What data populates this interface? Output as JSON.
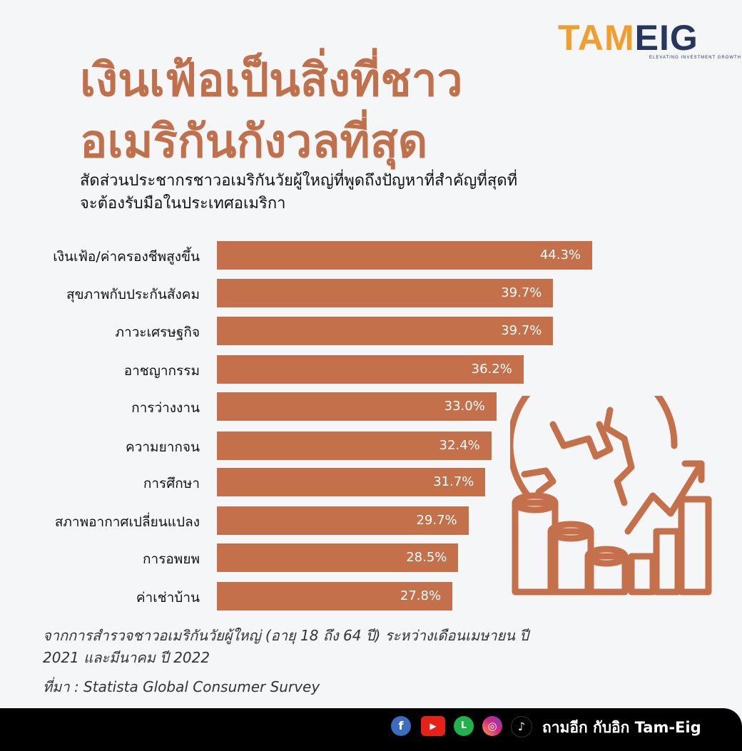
{
  "logo": {
    "part1": "TAM",
    "part2": "EIG",
    "tagline": "ELEVATING INVESTMENT GROWTH"
  },
  "title": "เงินเฟ้อเป็นสิ่งที่ชาวอเมริกันกังวลที่สุด",
  "subtitle": "สัดส่วนประชากรชาวอเมริกันวัยผู้ใหญ่ที่พูดถึงปัญหาที่สำคัญที่สุดที่จะต้องรับมือในประเทศอเมริกา",
  "chart_data": {
    "type": "bar",
    "orientation": "horizontal",
    "categories": [
      "เงินเฟ้อ/ค่าครองชีพสูงขึ้น",
      "สุขภาพกับประกันสังคม",
      "ภาวะเศรษฐกิจ",
      "อาชญากรรม",
      "การว่างงาน",
      "ความยากจน",
      "การศึกษา",
      "สภาพอากาศเปลี่ยนแปลง",
      "การอพยพ",
      "ค่าเช่าบ้าน"
    ],
    "values": [
      44.3,
      39.7,
      39.7,
      36.2,
      33.0,
      32.4,
      31.7,
      29.7,
      28.5,
      27.8
    ],
    "labels": [
      "44.3%",
      "39.7%",
      "39.7%",
      "36.2%",
      "33.0%",
      "32.4%",
      "31.7%",
      "29.7%",
      "28.5%",
      "27.8%"
    ],
    "bar_color": "#c4704a",
    "grid": false
  },
  "note": "จากการสำรวจชาวอเมริกันวัยผู้ใหญ่ (อายุ 18 ถึง 64 ปี) ระหว่างเดือนเมษายน ปี 2021 และมีนาคม ปี 2022",
  "source": "ที่มา : Statista Global Consumer Survey",
  "footer": {
    "text": "ถามอีก กับอิก Tam-Eig",
    "icons": [
      "facebook-icon",
      "youtube-icon",
      "line-icon",
      "instagram-icon",
      "tiktok-icon"
    ]
  }
}
